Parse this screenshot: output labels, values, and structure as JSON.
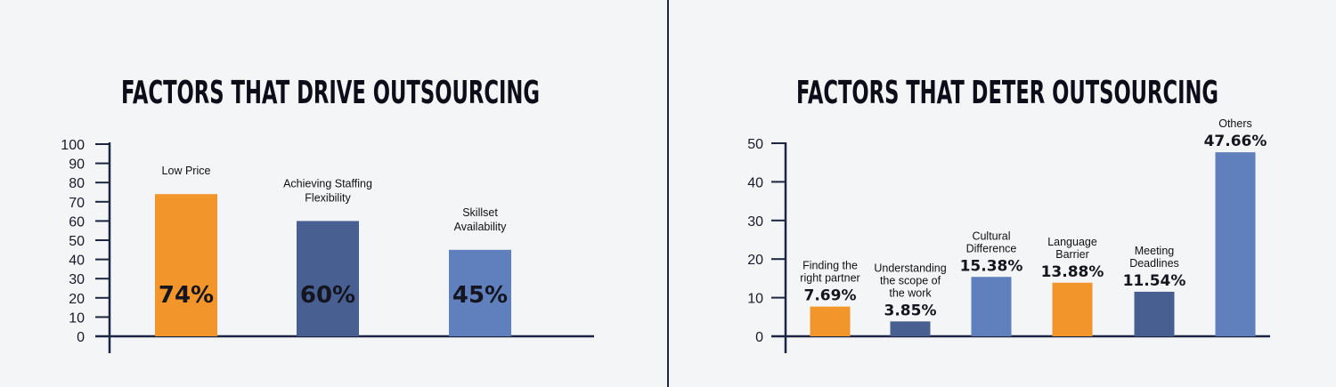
{
  "chart_data": [
    {
      "type": "bar",
      "title": "FACTORS THAT DRIVE OUTSOURCING",
      "xlabel": "",
      "ylabel": "",
      "ylim": [
        0,
        100
      ],
      "yticks": [
        0,
        10,
        20,
        30,
        40,
        50,
        60,
        70,
        80,
        90,
        100
      ],
      "categories": [
        [
          "Low Price"
        ],
        [
          "Achieving Staffing",
          "Flexibility"
        ],
        [
          "Skillset",
          "Availability"
        ]
      ],
      "values": [
        74,
        60,
        45
      ],
      "value_labels": [
        "74%",
        "60%",
        "45%"
      ],
      "colors": [
        "#f2962b",
        "#475f91",
        "#5f80bc"
      ],
      "grid": false,
      "legend": "none"
    },
    {
      "type": "bar",
      "title": "FACTORS THAT DETER OUTSOURCING",
      "xlabel": "",
      "ylabel": "",
      "ylim": [
        0,
        50
      ],
      "yticks": [
        0,
        10,
        20,
        30,
        40,
        50
      ],
      "categories": [
        [
          "Finding the",
          "right partner"
        ],
        [
          "Understanding",
          "the scope of",
          "the work"
        ],
        [
          "Cultural",
          "Difference"
        ],
        [
          "Language",
          "Barrier"
        ],
        [
          "Meeting",
          "Deadlines"
        ],
        [
          "Others"
        ]
      ],
      "values": [
        7.69,
        3.85,
        15.38,
        13.88,
        11.54,
        47.66
      ],
      "value_labels": [
        "7.69%",
        "3.85%",
        "15.38%",
        "13.88%",
        "11.54%",
        "47.66%"
      ],
      "colors": [
        "#f2962b",
        "#475f91",
        "#5f80bc",
        "#f2962b",
        "#475f91",
        "#5f80bc"
      ],
      "grid": false,
      "legend": "none"
    }
  ],
  "colors": {
    "axis": "#1c2541",
    "divider": "#1c2541",
    "background": "#f4f5f7"
  }
}
